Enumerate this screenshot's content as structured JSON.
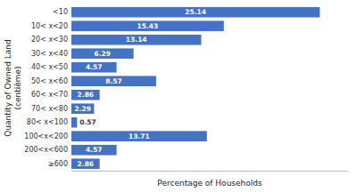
{
  "chart_data": {
    "type": "bar",
    "orientation": "horizontal",
    "categories": [
      "<10",
      "10< x<20",
      "20< x<30",
      "30< x<40",
      "40< x<50",
      "50< x<60",
      "60< x<70",
      "70< x<80",
      "80< x<100",
      "100<x<200",
      "200<x<600",
      "≥600"
    ],
    "values": [
      25.14,
      15.43,
      13.14,
      6.29,
      4.57,
      8.57,
      2.86,
      2.29,
      0.57,
      13.71,
      4.57,
      2.86
    ],
    "color": "#4472C4",
    "xlabel": "Percentage of Households",
    "ylabel": "Quantity of Owned Land\n(centième)",
    "xlim": [
      0,
      28
    ],
    "data_labels": true,
    "tick_labels": "y",
    "grid": false
  }
}
